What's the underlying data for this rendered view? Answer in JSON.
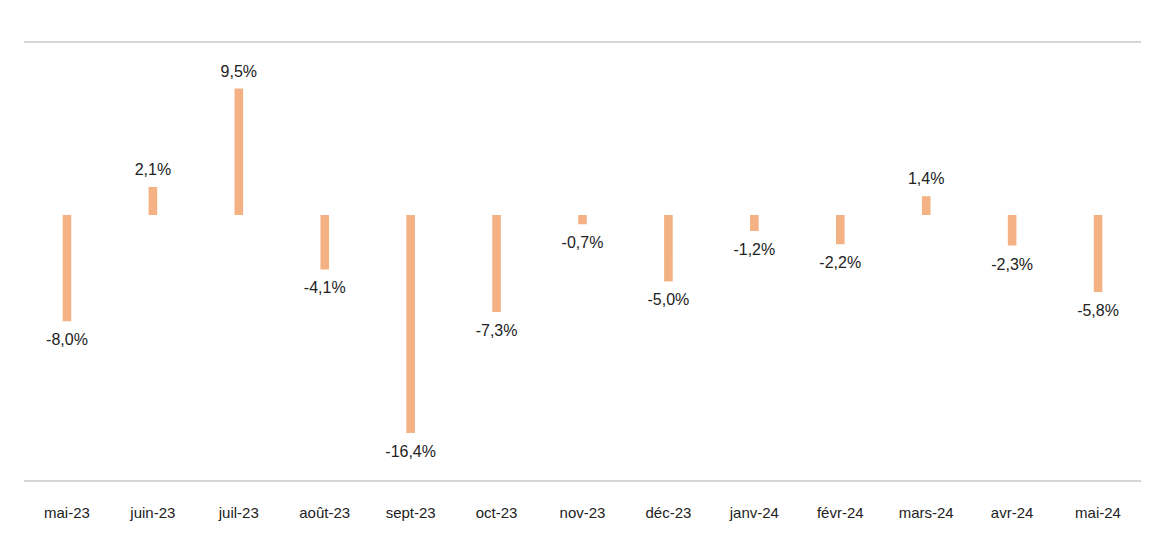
{
  "chart_data": {
    "type": "bar",
    "categories": [
      "mai-23",
      "juin-23",
      "juil-23",
      "août-23",
      "sept-23",
      "oct-23",
      "nov-23",
      "déc-23",
      "janv-24",
      "févr-24",
      "mars-24",
      "avr-24",
      "mai-24"
    ],
    "values": [
      -8.0,
      2.1,
      9.5,
      -4.1,
      -16.4,
      -7.3,
      -0.7,
      -5.0,
      -1.2,
      -2.2,
      1.4,
      -2.3,
      -5.8
    ],
    "value_labels": [
      "-8,0%",
      "2,1%",
      "9,5%",
      "-4,1%",
      "-16,4%",
      "-7,3%",
      "-0,7%",
      "-5,0%",
      "-1,2%",
      "-2,2%",
      "1,4%",
      "-2,3%",
      "-5,8%"
    ],
    "color": "#f4b183",
    "ylim": [
      -20,
      13
    ],
    "yticks": [
      0
    ],
    "grid": true,
    "data_labels": true,
    "tick_labels": "x"
  }
}
